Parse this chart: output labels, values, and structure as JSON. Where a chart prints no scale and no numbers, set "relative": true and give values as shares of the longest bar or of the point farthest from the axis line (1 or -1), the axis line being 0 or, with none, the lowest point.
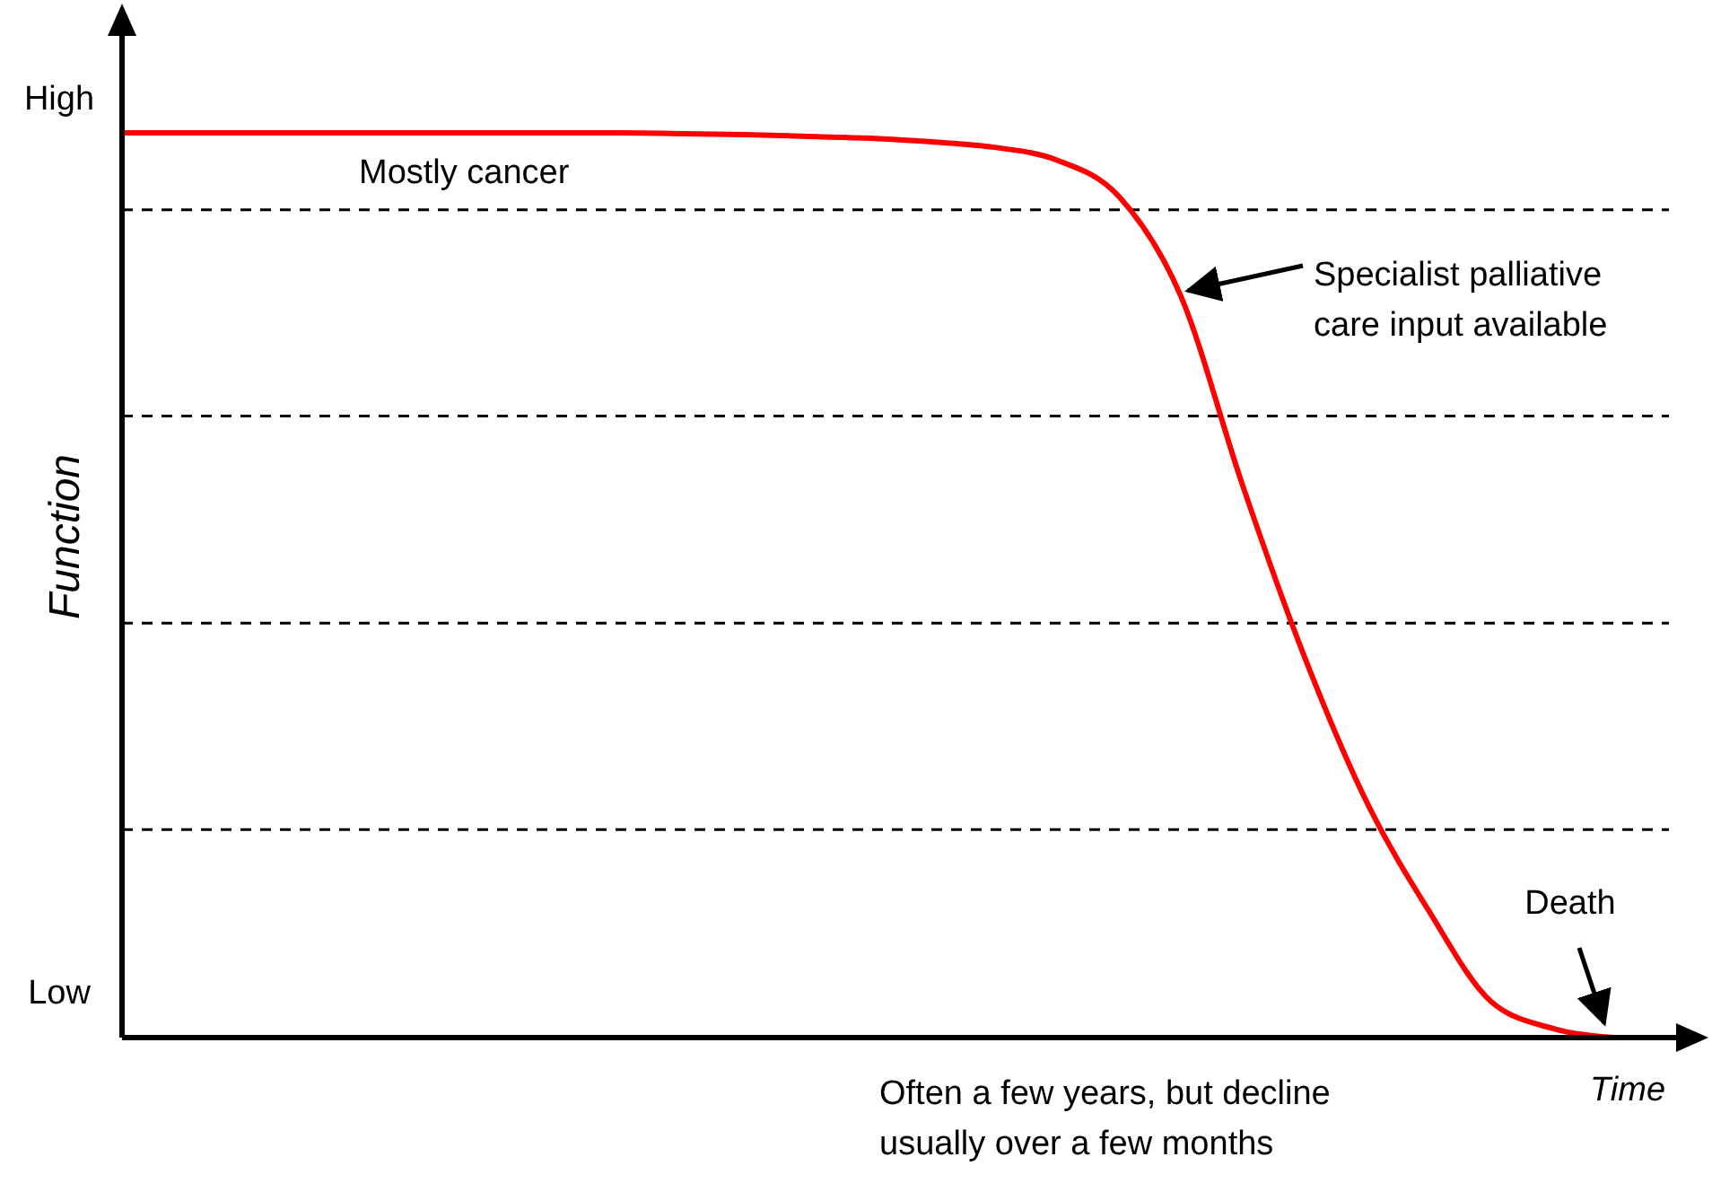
{
  "chart_data": {
    "type": "line",
    "xlabel": "Time",
    "ylabel": "Function",
    "relative": true,
    "categories": [
      null,
      null,
      null,
      null,
      null,
      null,
      null,
      null,
      null,
      null,
      null,
      null,
      null,
      null,
      null,
      null,
      null,
      null,
      null,
      null,
      null,
      null,
      null,
      null,
      null
    ],
    "series": [
      {
        "color": "#ff0000",
        "values": [
          1,
          1,
          1,
          1,
          1,
          1,
          1,
          1,
          1,
          0.999,
          0.998,
          0.996,
          0.994,
          0.99,
          0.984,
          0.97,
          0.93,
          0.82,
          0.61,
          0.42,
          0.26,
          0.14,
          0.04,
          0.01,
          0
        ]
      }
    ],
    "ref_lines": [
      {
        "axis": "y",
        "value": 0.915,
        "color": "#000000",
        "line_style": "dashed"
      },
      {
        "axis": "y",
        "value": 0.687,
        "color": "#000000",
        "line_style": "dashed"
      },
      {
        "axis": "y",
        "value": 0.458,
        "color": "#000000",
        "line_style": "dashed"
      },
      {
        "axis": "y",
        "value": 0.23,
        "color": "#000000",
        "line_style": "dashed"
      }
    ],
    "annotations": [
      "Mostly cancer",
      "Specialist palliative care input available",
      "Death",
      "Often a few years, but decline usually over a few months",
      "High",
      "Low"
    ]
  }
}
